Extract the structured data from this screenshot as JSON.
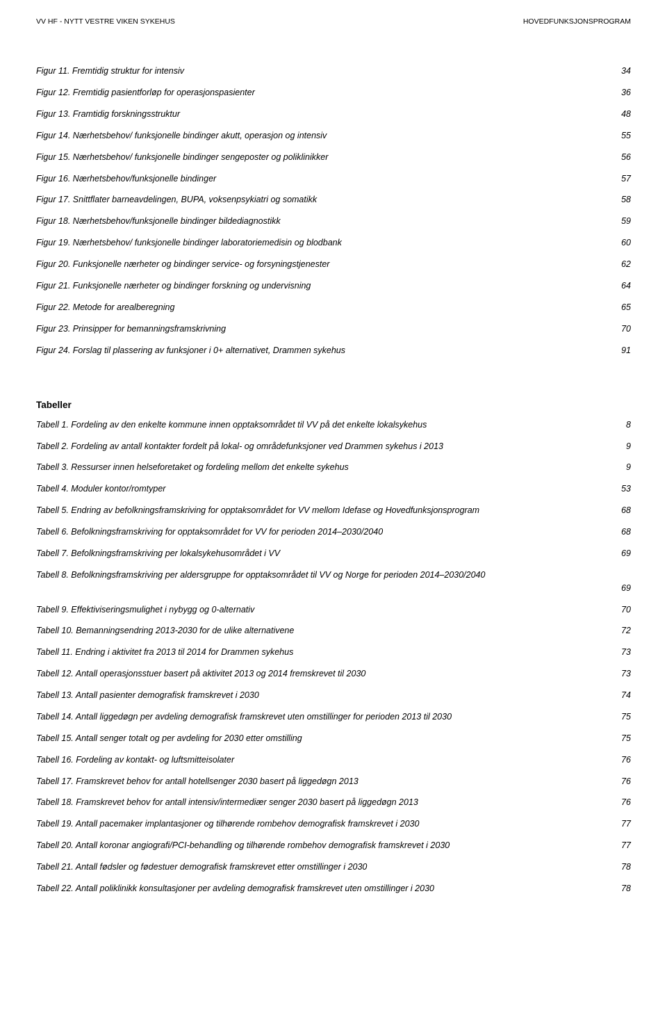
{
  "header": {
    "left": "VV HF - NYTT VESTRE VIKEN SYKEHUS",
    "right": "HOVEDFUNKSJONSPROGRAM"
  },
  "figures": [
    {
      "label": "Figur 11. Fremtidig struktur for intensiv",
      "page": "34"
    },
    {
      "label": "Figur 12. Fremtidig pasientforløp for operasjonspasienter",
      "page": "36"
    },
    {
      "label": "Figur 13. Framtidig forskningsstruktur",
      "page": "48"
    },
    {
      "label": "Figur 14. Nærhetsbehov/ funksjonelle bindinger akutt, operasjon og intensiv",
      "page": "55"
    },
    {
      "label": "Figur 15. Nærhetsbehov/ funksjonelle bindinger sengeposter og poliklinikker",
      "page": "56"
    },
    {
      "label": "Figur 16. Nærhetsbehov/funksjonelle bindinger",
      "page": "57"
    },
    {
      "label": "Figur 17. Snittflater barneavdelingen, BUPA, voksenpsykiatri og somatikk",
      "page": "58"
    },
    {
      "label": "Figur 18. Nærhetsbehov/funksjonelle bindinger bildediagnostikk",
      "page": "59"
    },
    {
      "label": "Figur 19. Nærhetsbehov/ funksjonelle bindinger laboratoriemedisin og blodbank",
      "page": "60"
    },
    {
      "label": "Figur 20. Funksjonelle nærheter og bindinger service- og forsyningstjenester",
      "page": "62"
    },
    {
      "label": "Figur 21. Funksjonelle nærheter og bindinger forskning og undervisning",
      "page": "64"
    },
    {
      "label": "Figur 22. Metode for arealberegning",
      "page": "65"
    },
    {
      "label": "Figur 23. Prinsipper for bemanningsframskrivning",
      "page": "70"
    },
    {
      "label": "Figur 24. Forslag til plassering av funksjoner i 0+ alternativet, Drammen sykehus",
      "page": "91"
    }
  ],
  "tables_title": "Tabeller",
  "tables": [
    {
      "label": "Tabell 1. Fordeling av den enkelte kommune innen opptaksområdet til VV på det enkelte lokalsykehus",
      "page": "8"
    },
    {
      "label": "Tabell 2. Fordeling av antall kontakter fordelt på lokal- og områdefunksjoner ved Drammen sykehus i 2013",
      "page": "9"
    },
    {
      "label": "Tabell 3. Ressurser innen helseforetaket og fordeling mellom det enkelte sykehus",
      "page": "9"
    },
    {
      "label": "Tabell 4. Moduler kontor/romtyper",
      "page": "53"
    },
    {
      "label": "Tabell 5. Endring av befolkningsframskriving for opptaksområdet for VV mellom Idefase og Hovedfunksjonsprogram",
      "page": "68"
    },
    {
      "label": "Tabell 6. Befolkningsframskriving for opptaksområdet for VV for perioden 2014–2030/2040",
      "page": "68"
    },
    {
      "label": "Tabell 7. Befolkningsframskriving per lokalsykehusområdet i VV",
      "page": "69"
    },
    {
      "label": "Tabell 8. Befolkningsframskriving per aldersgruppe for opptaksområdet til VV og Norge for perioden 2014–2030/2040",
      "page": "69",
      "twoline": true
    },
    {
      "label": "Tabell 9. Effektiviseringsmulighet i nybygg og 0-alternativ",
      "page": "70"
    },
    {
      "label": "Tabell 10. Bemanningsendring 2013-2030 for de ulike alternativene",
      "page": "72"
    },
    {
      "label": "Tabell 11. Endring i aktivitet fra 2013 til 2014 for Drammen sykehus",
      "page": "73"
    },
    {
      "label": "Tabell 12. Antall operasjonsstuer basert på aktivitet 2013 og 2014 fremskrevet til 2030",
      "page": "73"
    },
    {
      "label": "Tabell 13. Antall pasienter demografisk framskrevet i 2030",
      "page": "74"
    },
    {
      "label": "Tabell 14. Antall liggedøgn per avdeling demografisk framskrevet uten omstillinger for perioden 2013 til 2030",
      "page": "75"
    },
    {
      "label": "Tabell 15. Antall senger totalt og per avdeling for 2030 etter omstilling",
      "page": "75"
    },
    {
      "label": "Tabell 16. Fordeling av kontakt- og luftsmitteisolater",
      "page": "76"
    },
    {
      "label": "Tabell 17. Framskrevet behov for antall hotellsenger 2030 basert på liggedøgn 2013",
      "page": "76"
    },
    {
      "label": "Tabell 18. Framskrevet behov for antall intensiv/intermediær senger 2030 basert på liggedøgn 2013",
      "page": "76"
    },
    {
      "label": "Tabell 19. Antall pacemaker implantasjoner og tilhørende rombehov demografisk framskrevet i 2030",
      "page": "77"
    },
    {
      "label": "Tabell 20. Antall koronar angiografi/PCI-behandling og tilhørende rombehov demografisk framskrevet i 2030",
      "page": "77"
    },
    {
      "label": "Tabell 21. Antall fødsler og fødestuer demografisk framskrevet etter omstillinger i 2030",
      "page": "78"
    },
    {
      "label": "Tabell 22. Antall poliklinikk konsultasjoner per avdeling demografisk framskrevet uten omstillinger i 2030",
      "page": "78"
    }
  ]
}
